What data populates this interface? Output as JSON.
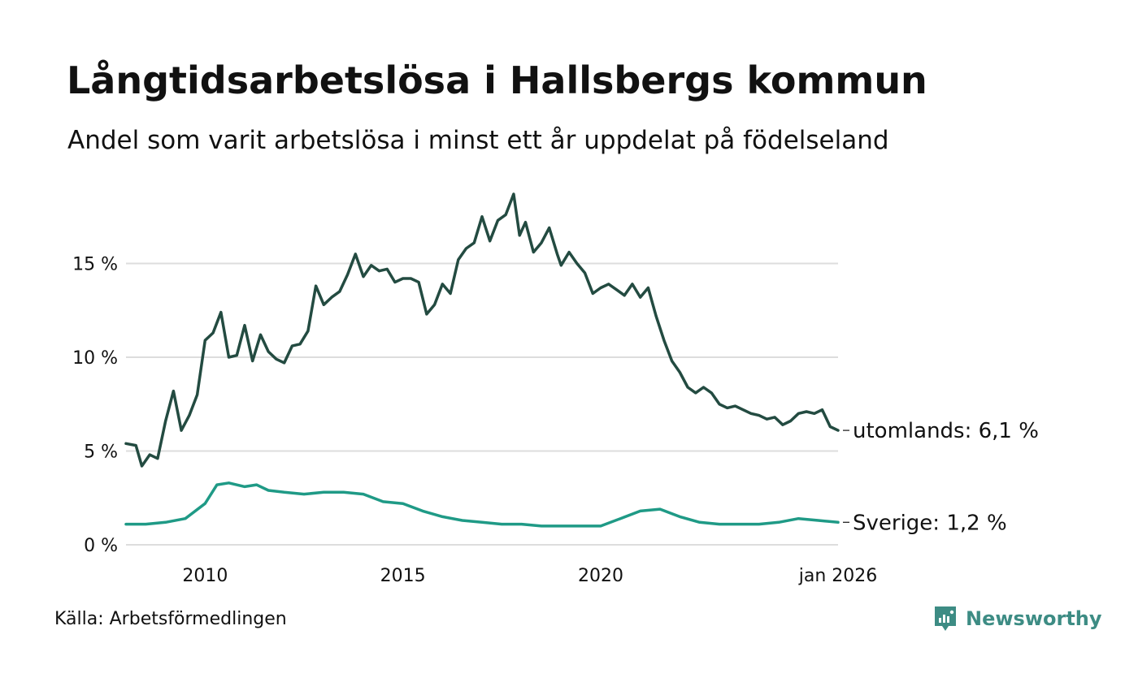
{
  "header": {
    "title": "Långtidsarbetslösa i Hallsbergs kommun",
    "subtitle": "Andel som varit arbetslösa i minst ett år uppdelat på födelseland"
  },
  "footer": {
    "source": "Källa: Arbetsförmedlingen",
    "brand": "Newsworthy",
    "brand_icon": "newsworthy-logo-icon"
  },
  "colors": {
    "utomlands": "#234b41",
    "sverige": "#1f9a86",
    "grid": "#dddddd",
    "brand": "#3d8c84"
  },
  "chart_data": {
    "type": "line",
    "title": "Långtidsarbetslösa i Hallsbergs kommun",
    "subtitle": "Andel som varit arbetslösa i minst ett år uppdelat på födelseland",
    "xlabel": "",
    "ylabel": "",
    "xlim": [
      2008.0,
      2026.0
    ],
    "ylim": [
      0,
      20
    ],
    "grid": true,
    "y_ticks": [
      0,
      5,
      10,
      15
    ],
    "y_tick_labels": [
      "0 %",
      "5 %",
      "10 %",
      "15 %"
    ],
    "x_ticks": [
      2010,
      2015,
      2020,
      2026.0
    ],
    "x_tick_labels": [
      "2010",
      "2015",
      "2020",
      "jan 2026"
    ],
    "series": [
      {
        "name": "utomlands",
        "end_label": "utomlands: 6,1 %",
        "x": [
          2008.0,
          2008.25,
          2008.4,
          2008.6,
          2008.8,
          2009.0,
          2009.2,
          2009.4,
          2009.6,
          2009.8,
          2010.0,
          2010.2,
          2010.4,
          2010.6,
          2010.8,
          2011.0,
          2011.2,
          2011.4,
          2011.6,
          2011.8,
          2012.0,
          2012.2,
          2012.4,
          2012.6,
          2012.8,
          2013.0,
          2013.2,
          2013.4,
          2013.6,
          2013.8,
          2014.0,
          2014.2,
          2014.4,
          2014.6,
          2014.8,
          2015.0,
          2015.2,
          2015.4,
          2015.6,
          2015.8,
          2016.0,
          2016.2,
          2016.4,
          2016.6,
          2016.8,
          2017.0,
          2017.2,
          2017.4,
          2017.6,
          2017.8,
          2017.95,
          2018.1,
          2018.3,
          2018.5,
          2018.7,
          2018.9,
          2019.0,
          2019.2,
          2019.4,
          2019.6,
          2019.8,
          2020.0,
          2020.2,
          2020.4,
          2020.6,
          2020.8,
          2021.0,
          2021.2,
          2021.4,
          2021.6,
          2021.8,
          2022.0,
          2022.2,
          2022.4,
          2022.6,
          2022.8,
          2023.0,
          2023.2,
          2023.4,
          2023.6,
          2023.8,
          2024.0,
          2024.2,
          2024.4,
          2024.6,
          2024.8,
          2025.0,
          2025.2,
          2025.4,
          2025.6,
          2025.8,
          2026.0
        ],
        "values": [
          5.4,
          5.3,
          4.2,
          4.8,
          4.6,
          6.6,
          8.2,
          6.1,
          6.9,
          8.0,
          10.9,
          11.3,
          12.4,
          10.0,
          10.1,
          11.7,
          9.8,
          11.2,
          10.3,
          9.9,
          9.7,
          10.6,
          10.7,
          11.4,
          13.8,
          12.8,
          13.2,
          13.5,
          14.4,
          15.5,
          14.3,
          14.9,
          14.6,
          14.7,
          14.0,
          14.2,
          14.2,
          14.0,
          12.3,
          12.8,
          13.9,
          13.4,
          15.2,
          15.8,
          16.1,
          17.5,
          16.2,
          17.3,
          17.6,
          18.7,
          16.5,
          17.2,
          15.6,
          16.1,
          16.9,
          15.5,
          14.9,
          15.6,
          15.0,
          14.5,
          13.4,
          13.7,
          13.9,
          13.6,
          13.3,
          13.9,
          13.2,
          13.7,
          12.2,
          10.9,
          9.8,
          9.2,
          8.4,
          8.1,
          8.4,
          8.1,
          7.5,
          7.3,
          7.4,
          7.2,
          7.0,
          6.9,
          6.7,
          6.8,
          6.4,
          6.6,
          7.0,
          7.1,
          7.0,
          7.2,
          6.3,
          6.1
        ]
      },
      {
        "name": "Sverige",
        "end_label": "Sverige: 1,2 %",
        "x": [
          2008.0,
          2008.5,
          2009.0,
          2009.5,
          2010.0,
          2010.3,
          2010.6,
          2011.0,
          2011.3,
          2011.6,
          2012.0,
          2012.5,
          2013.0,
          2013.5,
          2014.0,
          2014.5,
          2015.0,
          2015.5,
          2016.0,
          2016.5,
          2017.0,
          2017.5,
          2018.0,
          2018.5,
          2019.0,
          2019.5,
          2020.0,
          2020.5,
          2021.0,
          2021.5,
          2022.0,
          2022.5,
          2023.0,
          2023.5,
          2024.0,
          2024.5,
          2025.0,
          2025.5,
          2026.0
        ],
        "values": [
          1.1,
          1.1,
          1.2,
          1.4,
          2.2,
          3.2,
          3.3,
          3.1,
          3.2,
          2.9,
          2.8,
          2.7,
          2.8,
          2.8,
          2.7,
          2.3,
          2.2,
          1.8,
          1.5,
          1.3,
          1.2,
          1.1,
          1.1,
          1.0,
          1.0,
          1.0,
          1.0,
          1.4,
          1.8,
          1.9,
          1.5,
          1.2,
          1.1,
          1.1,
          1.1,
          1.2,
          1.4,
          1.3,
          1.2
        ]
      }
    ]
  }
}
